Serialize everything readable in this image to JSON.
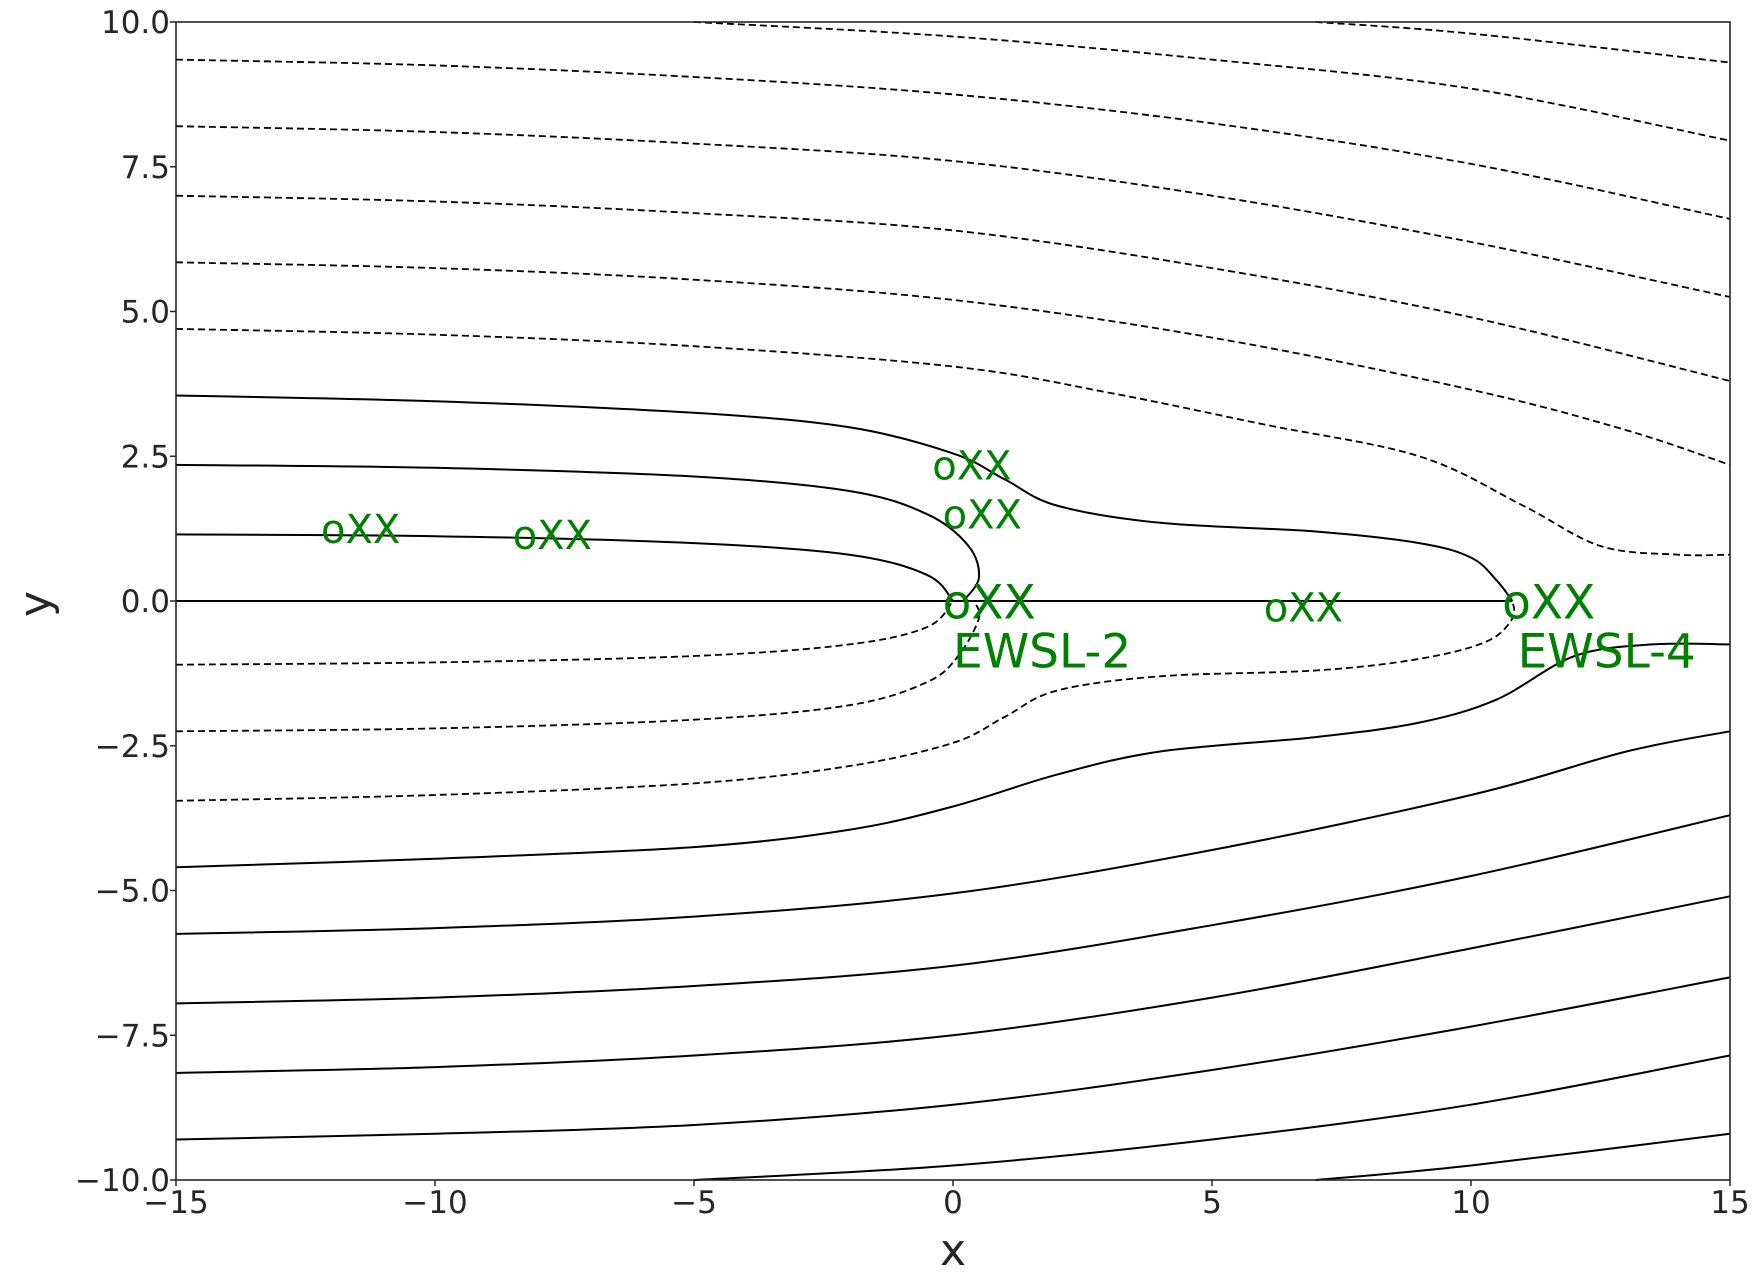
{
  "chart_data": {
    "type": "line",
    "title": "",
    "xlabel": "x",
    "ylabel": "y",
    "xlim": [
      -15,
      15
    ],
    "ylim": [
      -10,
      10
    ],
    "xticks": [
      -15,
      -10,
      -5,
      0,
      5,
      10,
      15
    ],
    "yticks": [
      -10.0,
      -7.5,
      -5.0,
      -2.5,
      0.0,
      2.5,
      5.0,
      7.5,
      10.0
    ],
    "xtick_labels": [
      "−15",
      "−10",
      "−5",
      "0",
      "5",
      "10",
      "15"
    ],
    "ytick_labels": [
      "−10.0",
      "−7.5",
      "−5.0",
      "−2.5",
      "0.0",
      "2.5",
      "5.0",
      "7.5",
      "10.0"
    ],
    "grid": false,
    "line_color": "#000000",
    "annotation_color": "#008000",
    "solid_lines": [
      [
        [
          -15,
          3.55
        ],
        [
          -10,
          3.45
        ],
        [
          -5,
          3.25
        ],
        [
          -2,
          3.0
        ],
        [
          0,
          2.55
        ],
        [
          1,
          2.1
        ],
        [
          2,
          1.65
        ],
        [
          4,
          1.35
        ],
        [
          7,
          1.2
        ],
        [
          9,
          1.0
        ],
        [
          10,
          0.75
        ],
        [
          10.5,
          0.35
        ],
        [
          10.8,
          0.0
        ]
      ],
      [
        [
          -15,
          2.35
        ],
        [
          -10,
          2.3
        ],
        [
          -5,
          2.15
        ],
        [
          -2,
          1.9
        ],
        [
          -0.5,
          1.5
        ],
        [
          0.3,
          0.95
        ],
        [
          0.5,
          0.4
        ],
        [
          0.2,
          0.0
        ]
      ],
      [
        [
          -15,
          1.15
        ],
        [
          -10,
          1.12
        ],
        [
          -5,
          1.0
        ],
        [
          -2,
          0.8
        ],
        [
          -0.5,
          0.45
        ],
        [
          0,
          0.0
        ]
      ],
      [
        [
          -15,
          0.0
        ],
        [
          10.8,
          0.0
        ]
      ],
      [
        [
          -15,
          -4.6
        ],
        [
          -10,
          -4.45
        ],
        [
          -5,
          -4.25
        ],
        [
          -2,
          -3.95
        ],
        [
          0,
          -3.55
        ],
        [
          2,
          -3.0
        ],
        [
          4,
          -2.6
        ],
        [
          7,
          -2.35
        ],
        [
          9,
          -2.1
        ],
        [
          10.5,
          -1.7
        ],
        [
          12,
          -0.95
        ],
        [
          13.5,
          -0.75
        ],
        [
          15,
          -0.75
        ]
      ],
      [
        [
          -15,
          -5.75
        ],
        [
          -10,
          -5.65
        ],
        [
          -5,
          -5.45
        ],
        [
          0,
          -5.05
        ],
        [
          5,
          -4.3
        ],
        [
          10,
          -3.35
        ],
        [
          13,
          -2.6
        ],
        [
          15,
          -2.25
        ]
      ],
      [
        [
          -15,
          -6.95
        ],
        [
          -10,
          -6.85
        ],
        [
          -5,
          -6.65
        ],
        [
          0,
          -6.3
        ],
        [
          5,
          -5.6
        ],
        [
          10,
          -4.75
        ],
        [
          15,
          -3.7
        ]
      ],
      [
        [
          -15,
          -8.15
        ],
        [
          -10,
          -8.05
        ],
        [
          -5,
          -7.85
        ],
        [
          0,
          -7.5
        ],
        [
          5,
          -6.85
        ],
        [
          10,
          -6.0
        ],
        [
          15,
          -5.1
        ]
      ],
      [
        [
          -15,
          -9.3
        ],
        [
          -10,
          -9.2
        ],
        [
          -5,
          -9.05
        ],
        [
          0,
          -8.7
        ],
        [
          5,
          -8.1
        ],
        [
          10,
          -7.35
        ],
        [
          15,
          -6.5
        ]
      ],
      [
        [
          -5,
          -10.0
        ],
        [
          0,
          -9.75
        ],
        [
          5,
          -9.3
        ],
        [
          10,
          -8.7
        ],
        [
          15,
          -7.85
        ]
      ],
      [
        [
          7,
          -10.0
        ],
        [
          10,
          -9.75
        ],
        [
          15,
          -9.2
        ]
      ]
    ],
    "dashed_lines": [
      [
        [
          -15,
          -1.1
        ],
        [
          -10,
          -1.06
        ],
        [
          -5,
          -0.95
        ],
        [
          -2,
          -0.75
        ],
        [
          -0.5,
          -0.45
        ],
        [
          0,
          0.0
        ]
      ],
      [
        [
          -15,
          -2.25
        ],
        [
          -10,
          -2.2
        ],
        [
          -5,
          -2.05
        ],
        [
          -2,
          -1.8
        ],
        [
          -0.5,
          -1.4
        ],
        [
          0.1,
          -0.95
        ],
        [
          0.5,
          -0.3
        ],
        [
          0.4,
          0.0
        ]
      ],
      [
        [
          -15,
          -3.45
        ],
        [
          -10,
          -3.35
        ],
        [
          -5,
          -3.15
        ],
        [
          -2,
          -2.85
        ],
        [
          0,
          -2.45
        ],
        [
          1,
          -2.0
        ],
        [
          2,
          -1.55
        ],
        [
          4,
          -1.3
        ],
        [
          7,
          -1.2
        ],
        [
          9,
          -1.0
        ],
        [
          10.3,
          -0.7
        ],
        [
          10.8,
          -0.3
        ],
        [
          10.8,
          0.0
        ]
      ],
      [
        [
          -15,
          4.7
        ],
        [
          -10,
          4.6
        ],
        [
          -5,
          4.4
        ],
        [
          0,
          4.05
        ],
        [
          3,
          3.6
        ],
        [
          6,
          3.05
        ],
        [
          9,
          2.5
        ],
        [
          11,
          1.65
        ],
        [
          12.5,
          0.95
        ],
        [
          14,
          0.8
        ],
        [
          15,
          0.8
        ]
      ],
      [
        [
          -15,
          5.85
        ],
        [
          -10,
          5.75
        ],
        [
          -5,
          5.55
        ],
        [
          0,
          5.2
        ],
        [
          5,
          4.55
        ],
        [
          10,
          3.65
        ],
        [
          13,
          2.95
        ],
        [
          15,
          2.35
        ]
      ],
      [
        [
          -15,
          7.0
        ],
        [
          -10,
          6.9
        ],
        [
          -5,
          6.7
        ],
        [
          0,
          6.4
        ],
        [
          5,
          5.75
        ],
        [
          10,
          4.9
        ],
        [
          15,
          3.8
        ]
      ],
      [
        [
          -15,
          8.2
        ],
        [
          -10,
          8.1
        ],
        [
          -5,
          7.9
        ],
        [
          0,
          7.6
        ],
        [
          5,
          7.0
        ],
        [
          10,
          6.2
        ],
        [
          15,
          5.25
        ]
      ],
      [
        [
          -15,
          9.35
        ],
        [
          -10,
          9.25
        ],
        [
          -5,
          9.05
        ],
        [
          0,
          8.75
        ],
        [
          5,
          8.25
        ],
        [
          10,
          7.55
        ],
        [
          15,
          6.6
        ]
      ],
      [
        [
          -5,
          10.0
        ],
        [
          0,
          9.75
        ],
        [
          5,
          9.35
        ],
        [
          10,
          8.85
        ],
        [
          15,
          7.95
        ]
      ],
      [
        [
          7,
          10.0
        ],
        [
          10,
          9.8
        ],
        [
          15,
          9.3
        ]
      ]
    ],
    "annotations": [
      {
        "text": "oXX",
        "x": -12.2,
        "y": 1.0,
        "size": "small"
      },
      {
        "text": "oXX",
        "x": -8.5,
        "y": 0.9,
        "size": "small"
      },
      {
        "text": "oXX",
        "x": -0.4,
        "y": 2.1,
        "size": "small"
      },
      {
        "text": "oXX",
        "x": -0.2,
        "y": 1.25,
        "size": "small"
      },
      {
        "text": "oXX",
        "x": 6.0,
        "y": -0.35,
        "size": "small"
      },
      {
        "text": "oXX",
        "x": -0.2,
        "y": -0.3,
        "size": "large"
      },
      {
        "text": "EWSL-2",
        "x": 0.0,
        "y": -1.15,
        "size": "large"
      },
      {
        "text": "oXX",
        "x": 10.6,
        "y": -0.3,
        "size": "large"
      },
      {
        "text": "EWSL-4",
        "x": 10.9,
        "y": -1.15,
        "size": "large"
      }
    ]
  }
}
